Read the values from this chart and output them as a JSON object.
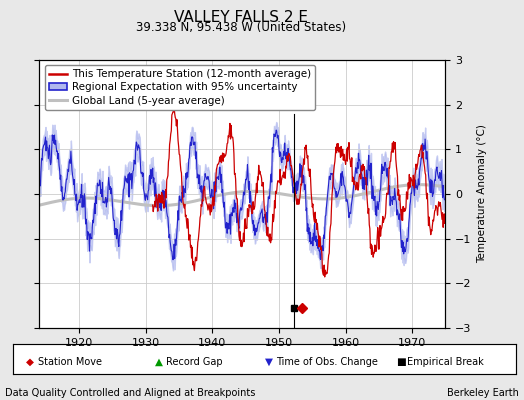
{
  "title": "VALLEY FALLS 2 E",
  "subtitle": "39.338 N, 95.438 W (United States)",
  "ylabel": "Temperature Anomaly (°C)",
  "xlabel_left": "Data Quality Controlled and Aligned at Breakpoints",
  "xlabel_right": "Berkeley Earth",
  "xlim": [
    1914,
    1975
  ],
  "ylim": [
    -3,
    3
  ],
  "yticks": [
    -3,
    -2,
    -1,
    0,
    1,
    2,
    3
  ],
  "xticks": [
    1920,
    1930,
    1940,
    1950,
    1960,
    1970
  ],
  "bg_color": "#e8e8e8",
  "plot_bg_color": "#ffffff",
  "grid_color": "#cccccc",
  "empirical_break_x": 1952.3,
  "station_move_x": 1953.5,
  "vertical_line_x": 1952.3,
  "red_line_color": "#cc0000",
  "blue_line_color": "#2222cc",
  "blue_fill_color": "#b0b8ee",
  "gray_line_color": "#c0c0c0",
  "title_fontsize": 11,
  "subtitle_fontsize": 8.5,
  "legend_fontsize": 7.5,
  "tick_fontsize": 8,
  "annotation_fontsize": 7
}
